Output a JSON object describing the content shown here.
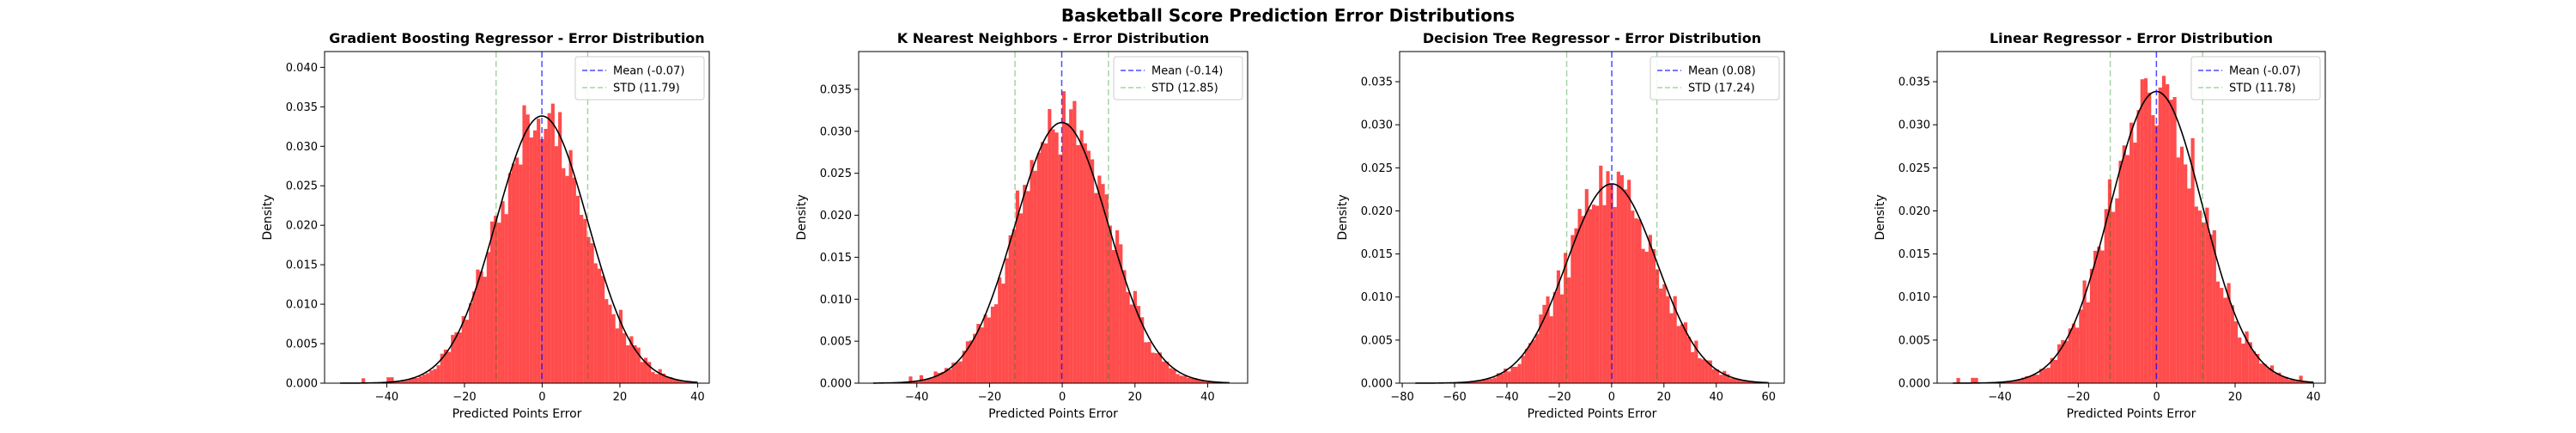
{
  "figure": {
    "title": "Basketball Score Prediction Error Distributions",
    "colors": {
      "bars": "#ff0000",
      "bar_alpha": 0.7,
      "curve": "#000000",
      "mean_line": "#0000ff",
      "std_line": "#008000"
    }
  },
  "chart_data": [
    {
      "type": "histogram",
      "title": "Gradient Boosting Regressor - Error Distribution",
      "xlabel": "Predicted Points Error",
      "ylabel": "Density",
      "xlim": [
        -56,
        43
      ],
      "ylim": [
        0,
        0.042
      ],
      "xticks": [
        -40,
        -20,
        0,
        20,
        40
      ],
      "yticks": [
        0.0,
        0.005,
        0.01,
        0.015,
        0.02,
        0.025,
        0.03,
        0.035,
        0.04
      ],
      "bin_range": [
        -52,
        40
      ],
      "bins": 100,
      "normal_fit": {
        "mean": -0.07,
        "std": 11.79
      },
      "mean": -0.07,
      "std": 11.79,
      "legend": {
        "position": "upper right",
        "entries": [
          "Mean (-0.07)",
          "STD (11.79)"
        ]
      },
      "grid": false
    },
    {
      "type": "histogram",
      "title": "K Nearest Neighbors - Error Distribution",
      "xlabel": "Predicted Points Error",
      "ylabel": "Density",
      "xlim": [
        -56,
        51
      ],
      "ylim": [
        0,
        0.0395
      ],
      "xticks": [
        -40,
        -20,
        0,
        20,
        40
      ],
      "yticks": [
        0.0,
        0.005,
        0.01,
        0.015,
        0.02,
        0.025,
        0.03,
        0.035
      ],
      "bin_range": [
        -52,
        46
      ],
      "bins": 100,
      "normal_fit": {
        "mean": -0.14,
        "std": 12.85
      },
      "mean": -0.14,
      "std": 12.85,
      "legend": {
        "position": "upper right",
        "entries": [
          "Mean (-0.14)",
          "STD (12.85)"
        ]
      },
      "grid": false
    },
    {
      "type": "histogram",
      "title": "Decision Tree Regressor - Error Distribution",
      "xlabel": "Predicted Points Error",
      "ylabel": "Density",
      "xlim": [
        -81,
        66
      ],
      "ylim": [
        0,
        0.0385
      ],
      "xticks": [
        -80,
        -60,
        -40,
        -20,
        0,
        20,
        40,
        60
      ],
      "yticks": [
        0.0,
        0.005,
        0.01,
        0.015,
        0.02,
        0.025,
        0.03,
        0.035
      ],
      "bin_range": [
        -75,
        60
      ],
      "bins": 100,
      "normal_fit": {
        "mean": 0.08,
        "std": 17.24
      },
      "mean": 0.08,
      "std": 17.24,
      "legend": {
        "position": "upper right",
        "entries": [
          "Mean (0.08)",
          "STD (17.24)"
        ]
      },
      "grid": false
    },
    {
      "type": "histogram",
      "title": "Linear Regressor - Error Distribution",
      "xlabel": "Predicted Points Error",
      "ylabel": "Density",
      "xlim": [
        -56,
        43
      ],
      "ylim": [
        0,
        0.0385
      ],
      "xticks": [
        -40,
        -20,
        0,
        20,
        40
      ],
      "yticks": [
        0.0,
        0.005,
        0.01,
        0.015,
        0.02,
        0.025,
        0.03,
        0.035
      ],
      "bin_range": [
        -52,
        40
      ],
      "bins": 100,
      "normal_fit": {
        "mean": -0.07,
        "std": 11.78
      },
      "mean": -0.07,
      "std": 11.78,
      "legend": {
        "position": "upper right",
        "entries": [
          "Mean (-0.07)",
          "STD (11.78)"
        ]
      },
      "grid": false
    }
  ]
}
